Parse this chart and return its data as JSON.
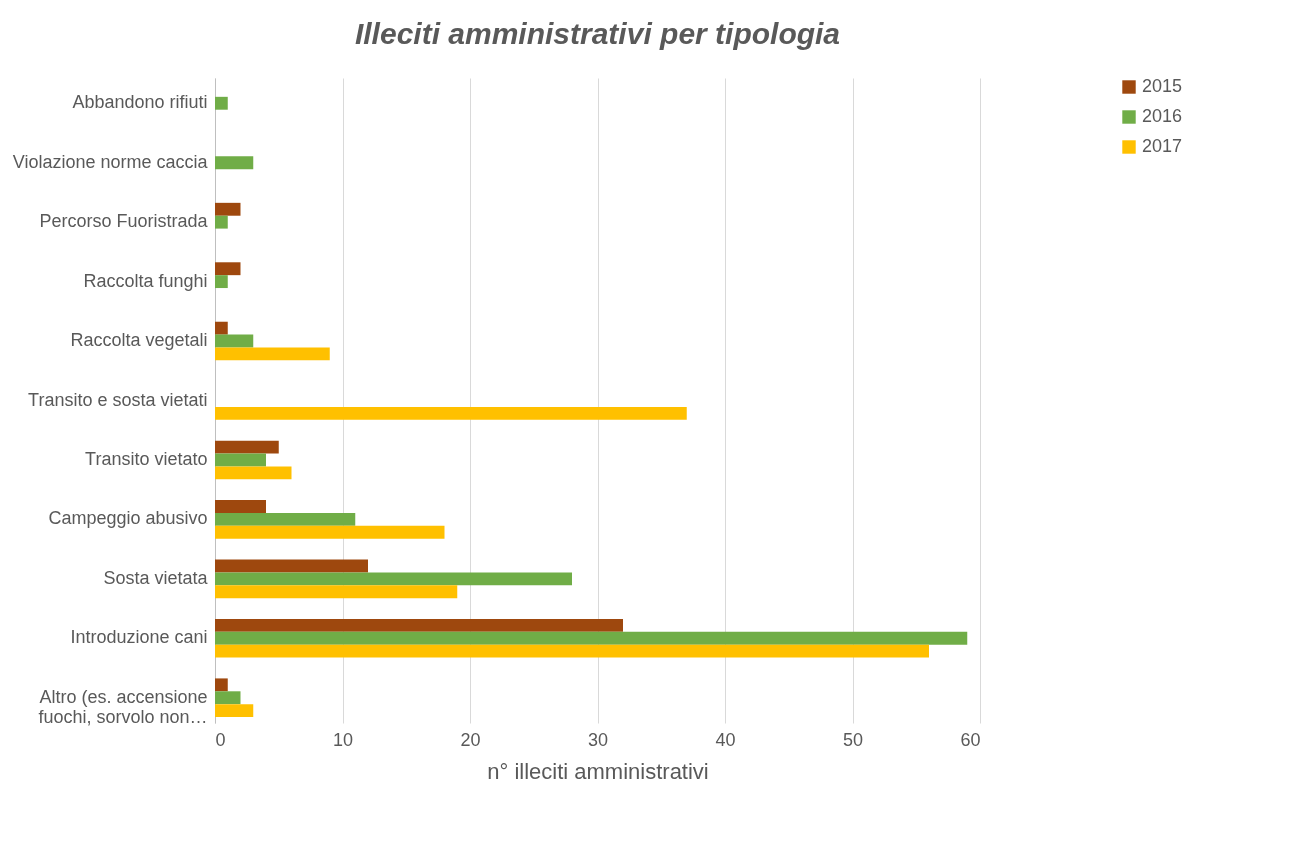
{
  "chart_data": {
    "type": "bar",
    "orientation": "horizontal",
    "title": "Illeciti amministrativi per tipologia",
    "xlabel": "n° illeciti amministrativi",
    "categories": [
      "Abbandono rifiuti",
      "Violazione norme caccia",
      "Percorso Fuoristrada",
      "Raccolta funghi",
      "Raccolta vegetali",
      "Transito e sosta vietati",
      "Transito vietato",
      "Campeggio abusivo",
      "Sosta vietata",
      "Introduzione cani",
      "Altro (es. accensione fuochi, sorvolo non…"
    ],
    "series": [
      {
        "name": "2015",
        "color": "#9e480e",
        "values": [
          null,
          null,
          2,
          2,
          1,
          null,
          5,
          4,
          12,
          32,
          1
        ]
      },
      {
        "name": "2016",
        "color": "#70ad47",
        "values": [
          1,
          3,
          1,
          1,
          3,
          null,
          4,
          11,
          28,
          59,
          2
        ]
      },
      {
        "name": "2017",
        "color": "#ffc000",
        "values": [
          null,
          null,
          null,
          null,
          9,
          37,
          6,
          18,
          19,
          56,
          3
        ]
      }
    ],
    "xlim": [
      0,
      60
    ],
    "xticks": [
      0,
      10,
      20,
      30,
      40,
      50,
      60
    ],
    "grid": "x",
    "legend": "right"
  }
}
